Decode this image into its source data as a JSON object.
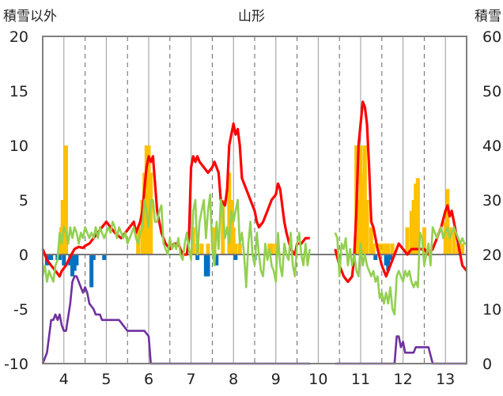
{
  "chart_data": {
    "type": "line",
    "title": "山形",
    "left_axis": {
      "label": "積雪以外",
      "ylim": [
        -10,
        20
      ],
      "ticks": [
        "20",
        "15",
        "10",
        "5",
        "0",
        "-5",
        "-10"
      ]
    },
    "right_axis": {
      "label": "積雪",
      "ylim": [
        0,
        60
      ],
      "ticks": [
        "60",
        "50",
        "40",
        "30",
        "20",
        "10",
        "0"
      ]
    },
    "x_axis": {
      "xlim": [
        3.5,
        13.5
      ],
      "ticks": [
        "4",
        "5",
        "6",
        "7",
        "8",
        "9",
        "10",
        "11",
        "12",
        "13"
      ]
    },
    "grid": {
      "vertical_solid": "at integer days",
      "vertical_dashed": "at half days",
      "horizontal": "none"
    },
    "colors": {
      "red": "#ff0000",
      "green": "#92d050",
      "purple": "#7030a0",
      "orange": "#ffc000",
      "blue": "#0070c0",
      "axis": "#808080"
    },
    "series": [
      {
        "color_key": "orange",
        "kind": "bar",
        "axis": "left",
        "x": [
          3.94,
          3.97,
          4.0,
          4.05,
          5.75,
          5.85,
          5.9,
          5.95,
          6.0,
          6.05,
          7.05,
          7.15,
          7.25,
          7.4,
          7.55,
          7.75,
          7.9,
          7.95,
          8.0,
          8.05,
          8.15,
          8.85,
          8.9,
          9.0,
          10.9,
          10.95,
          11.0,
          11.05,
          11.1,
          11.15,
          11.25,
          11.3,
          11.45,
          11.55,
          11.6,
          11.65,
          11.75,
          12.1,
          12.2,
          12.25,
          12.3,
          12.35,
          12.5,
          13.0,
          13.05,
          13.1,
          13.2,
          13.3,
          13.4
        ],
        "y": [
          2.5,
          5,
          2.5,
          10,
          2.5,
          5,
          7.5,
          10,
          10,
          7.5,
          2.5,
          1,
          1,
          1,
          2.5,
          5,
          7.5,
          5,
          2.5,
          1,
          1,
          1,
          1,
          1,
          10,
          5,
          10,
          7.5,
          10,
          5,
          2.5,
          1,
          1,
          1,
          1,
          1,
          1,
          2.5,
          4,
          5,
          6.5,
          7,
          2.5,
          3,
          6,
          2.5,
          2.5,
          1,
          1
        ]
      },
      {
        "color_key": "blue",
        "kind": "bar",
        "axis": "left",
        "x": [
          3.6,
          3.65,
          3.7,
          3.85,
          3.9,
          4.0,
          4.15,
          4.2,
          4.25,
          4.3,
          4.65,
          4.7,
          4.95,
          7.15,
          7.35,
          7.4,
          7.55,
          7.6,
          8.05,
          8.5,
          11.35,
          11.6,
          11.65,
          11.7
        ],
        "y": [
          -1,
          -0.5,
          -0.5,
          -0.5,
          -0.5,
          -1,
          -1,
          -2,
          -1.5,
          -1,
          -3,
          -0.5,
          -0.5,
          -0.5,
          -2,
          -2,
          -0.5,
          -1,
          -0.5,
          -0.5,
          -0.5,
          -1,
          -1.5,
          -0.5
        ]
      },
      {
        "color_key": "red",
        "kind": "line",
        "axis": "left",
        "x": [
          3.5,
          3.55,
          3.6,
          3.7,
          3.8,
          3.9,
          3.95,
          4.05,
          4.15,
          4.25,
          4.35,
          4.45,
          4.5,
          4.6,
          4.7,
          4.8,
          4.9,
          5.0,
          5.1,
          5.2,
          5.35,
          5.45,
          5.55,
          5.65,
          5.7,
          5.8,
          5.85,
          5.9,
          5.95,
          6.0,
          6.05,
          6.1,
          6.2,
          6.3,
          6.4,
          6.5,
          6.6,
          6.7,
          6.8,
          6.9,
          6.95,
          7.0,
          7.05,
          7.1,
          7.15,
          7.2,
          7.3,
          7.4,
          7.5,
          7.55,
          7.6,
          7.65,
          7.7,
          7.8,
          7.85,
          7.9,
          7.95,
          8.0,
          8.05,
          8.1,
          8.15,
          8.2,
          8.25,
          8.3,
          8.4,
          8.5,
          8.55,
          8.6,
          8.7,
          8.8,
          8.9,
          9.0,
          9.05,
          9.1,
          9.2,
          9.25,
          9.35,
          9.45,
          9.5,
          9.6,
          9.7,
          9.8
        ],
        "y": [
          0.5,
          0,
          -0.5,
          -1,
          -1.5,
          -2,
          -1.5,
          -1,
          -0.2,
          0.5,
          0.7,
          0.6,
          0.8,
          1,
          1.5,
          2,
          2.5,
          3,
          2.5,
          2,
          1.5,
          2,
          2.5,
          3,
          2,
          3,
          4,
          6,
          8,
          9,
          8.5,
          9,
          4,
          2,
          1,
          0.5,
          1,
          1,
          0,
          0,
          1.5,
          8,
          9,
          8.5,
          9,
          8.5,
          8,
          7.5,
          8,
          8.5,
          8,
          7.5,
          5,
          4.5,
          6,
          10,
          11,
          12,
          11,
          11.5,
          10,
          7,
          6.5,
          6,
          5,
          4,
          3,
          2.5,
          3,
          4,
          5,
          5.5,
          6.5,
          6,
          3,
          2,
          0.5,
          0,
          1,
          1,
          1.5,
          1.5
        ]
      },
      {
        "color_key": "red",
        "kind": "line",
        "axis": "left",
        "x": [
          10.4,
          10.5,
          10.6,
          10.7,
          10.8,
          10.85,
          10.9,
          10.95,
          11.0,
          11.05,
          11.1,
          11.15,
          11.2,
          11.25,
          11.3,
          11.35,
          11.4,
          11.5,
          11.6,
          11.7,
          11.8,
          11.9,
          12.0,
          12.1,
          12.2,
          12.3,
          12.4,
          12.5,
          12.6,
          12.7,
          12.8,
          12.9,
          13.0,
          13.05,
          13.1,
          13.15,
          13.2,
          13.25,
          13.3,
          13.4,
          13.5
        ],
        "y": [
          0.5,
          -1,
          -2,
          -2.5,
          -2,
          0,
          4,
          10,
          12,
          14,
          13.5,
          12,
          8,
          3,
          2.5,
          1.5,
          0.5,
          -1,
          -2,
          -1,
          0,
          1,
          0.5,
          0,
          0.5,
          0.5,
          0.5,
          0.5,
          0,
          0.5,
          1.5,
          2.5,
          4,
          4.5,
          3.5,
          4,
          3,
          2,
          1,
          -1,
          -1.5
        ]
      },
      {
        "color_key": "green",
        "kind": "line",
        "axis": "left",
        "x": [
          3.5,
          3.55,
          3.6,
          3.65,
          3.7,
          3.75,
          3.8,
          3.85,
          3.9,
          3.95,
          4.0,
          4.05,
          4.1,
          4.15,
          4.2,
          4.25,
          4.3,
          4.35,
          4.4,
          4.45,
          4.5,
          4.55,
          4.6,
          4.65,
          4.7,
          4.75,
          4.8,
          4.85,
          4.9,
          4.95,
          5.0,
          5.05,
          5.1,
          5.15,
          5.2,
          5.25,
          5.3,
          5.35,
          5.4,
          5.45,
          5.5,
          5.55,
          5.6,
          5.65,
          5.7,
          5.75,
          5.8,
          5.85,
          5.9,
          5.95,
          6.0,
          6.05,
          6.1,
          6.15,
          6.2,
          6.25,
          6.3,
          6.35,
          6.4,
          6.45,
          6.5,
          6.55,
          6.6,
          6.65,
          6.7,
          6.75,
          6.8,
          6.85,
          6.9,
          6.95,
          7.0,
          7.05,
          7.1,
          7.15,
          7.2,
          7.25,
          7.3,
          7.35,
          7.4,
          7.45,
          7.5,
          7.55,
          7.6,
          7.65,
          7.7,
          7.75,
          7.8,
          7.85,
          7.9,
          7.95,
          8.0,
          8.05,
          8.1,
          8.15,
          8.2,
          8.25,
          8.3,
          8.35,
          8.4,
          8.45,
          8.5,
          8.55,
          8.6,
          8.65,
          8.7,
          8.75,
          8.8,
          8.85,
          8.9,
          8.95,
          9.0,
          9.05,
          9.1,
          9.15,
          9.2,
          9.25,
          9.3,
          9.35,
          9.4,
          9.45,
          9.5,
          9.55,
          9.6,
          9.65,
          9.7,
          9.75,
          9.8
        ],
        "y": [
          -2,
          -1,
          -2.5,
          -1.5,
          -2,
          -2.5,
          -1,
          -0.5,
          2,
          1,
          2.5,
          2,
          1,
          2.5,
          1.5,
          2.5,
          2,
          1,
          2,
          1.5,
          2.5,
          2,
          1.5,
          2,
          1.5,
          2.5,
          1.5,
          2.5,
          2,
          1.5,
          2,
          2.5,
          2,
          3,
          2.5,
          1.5,
          2.5,
          2,
          1.5,
          2,
          1,
          1.5,
          2,
          2.5,
          1.5,
          1,
          2,
          2.5,
          5,
          4,
          2.5,
          5,
          5,
          3,
          3,
          4,
          4.5,
          1,
          0.5,
          0,
          1.5,
          0.5,
          1,
          0.5,
          1.5,
          0,
          -0.5,
          1,
          2,
          0.5,
          -0.5,
          4,
          5,
          0,
          3,
          4,
          5,
          1.5,
          4,
          5.5,
          0.5,
          -1,
          3,
          0.5,
          5,
          4,
          1.5,
          2.5,
          1,
          4,
          3,
          4,
          5,
          1,
          2,
          0,
          -3,
          1,
          3,
          0,
          -1,
          2,
          0,
          -1.5,
          -2,
          1,
          -0.5,
          0.5,
          -1,
          -1.5,
          -2.5,
          2,
          -1,
          -2,
          1,
          0,
          -0.5,
          2,
          -1,
          -2,
          1,
          2,
          0,
          -1,
          1,
          -1,
          0.5
        ]
      },
      {
        "color_key": "green",
        "kind": "line",
        "axis": "left",
        "x": [
          10.4,
          10.45,
          10.5,
          10.55,
          10.6,
          10.65,
          10.7,
          10.75,
          10.8,
          10.85,
          10.9,
          10.95,
          11.0,
          11.05,
          11.1,
          11.15,
          11.2,
          11.25,
          11.3,
          11.35,
          11.4,
          11.45,
          11.5,
          11.55,
          11.6,
          11.65,
          11.7,
          11.75,
          11.8,
          11.85,
          11.9,
          11.95,
          12.0,
          12.05,
          12.1,
          12.15,
          12.2,
          12.25,
          12.3,
          12.35,
          12.4,
          12.45,
          12.5,
          12.55,
          12.6,
          12.65,
          12.7,
          12.75,
          12.8,
          12.85,
          12.9,
          12.95,
          13.0,
          13.05,
          13.1,
          13.15,
          13.2,
          13.25,
          13.3,
          13.35,
          13.4,
          13.45,
          13.5
        ],
        "y": [
          2,
          1.5,
          -2,
          1,
          0.5,
          1.5,
          -1,
          0.5,
          -1,
          0,
          -1.5,
          -2,
          1,
          -1,
          0,
          -1,
          -1.5,
          -2,
          -1.5,
          -2.5,
          -2,
          -4,
          -3.5,
          -4.5,
          -3.5,
          -4.5,
          -3,
          -5,
          -5.5,
          -2,
          -1.5,
          -2,
          -2.5,
          -1.5,
          -2,
          -1.5,
          -2.5,
          -3,
          -2.5,
          -3,
          2,
          1.5,
          -1,
          0,
          1,
          -1,
          2.5,
          2,
          1.5,
          2,
          2.5,
          1.5,
          2,
          2.5,
          1.5,
          2,
          2.5,
          2,
          1.5,
          1,
          1.5,
          1,
          1
        ]
      },
      {
        "color_key": "purple",
        "kind": "line",
        "axis": "right",
        "x": [
          3.5,
          3.6,
          3.7,
          3.75,
          3.8,
          3.85,
          3.9,
          3.95,
          4.0,
          4.05,
          4.15,
          4.2,
          4.25,
          4.3,
          4.4,
          4.45,
          4.5,
          4.55,
          4.6,
          4.7,
          4.75,
          4.8,
          4.85,
          4.9,
          5.0,
          5.3,
          5.5,
          5.9,
          6.0,
          6.05,
          9.8
        ],
        "y": [
          0,
          2,
          8,
          8,
          9,
          8,
          9,
          7,
          6,
          6,
          11,
          15,
          16,
          16,
          14,
          13,
          14,
          13,
          11,
          10,
          9,
          9,
          9,
          8,
          8,
          8,
          6,
          6,
          5,
          0,
          0
        ]
      },
      {
        "color_key": "purple",
        "kind": "line",
        "axis": "right",
        "x": [
          10.4,
          11.8,
          11.85,
          11.9,
          11.95,
          12.0,
          12.05,
          12.25,
          12.3,
          12.6,
          12.7,
          13.5
        ],
        "y": [
          0,
          0,
          5,
          5,
          3,
          4,
          2,
          2,
          3,
          3,
          0,
          0
        ]
      }
    ]
  }
}
